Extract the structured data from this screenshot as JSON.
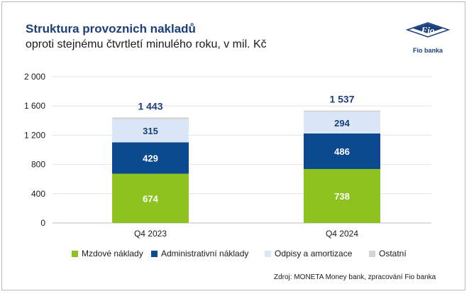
{
  "header": {
    "title": "Struktura provoznich nakladů",
    "subtitle": "oproti stejnému čtvrtletí minulého roku, v mil. Kč"
  },
  "logo": {
    "mark_text": "Fio",
    "label": "Fio banka"
  },
  "chart_data": {
    "type": "bar",
    "stacked": true,
    "title": "Struktura provoznich nakladů",
    "subtitle": "oproti stejnému čtvrtletí minulého roku, v mil. Kč",
    "categories": [
      "Q4 2023",
      "Q4 2024"
    ],
    "series": [
      {
        "name": "Mzdové náklady",
        "values": [
          674,
          738
        ],
        "color": "#8dc21f",
        "label_color": "#ffffff",
        "show_labels": true
      },
      {
        "name": "Administrativní náklady",
        "values": [
          429,
          486
        ],
        "color": "#0c4a8f",
        "label_color": "#ffffff",
        "show_labels": true
      },
      {
        "name": "Odpisy a amortizace",
        "values": [
          315,
          294
        ],
        "color": "#dbe7f6",
        "label_color": "#1a3f7a",
        "show_labels": true
      },
      {
        "name": "Ostatní",
        "values": [
          25,
          19
        ],
        "color": "#d4d4d4",
        "label_color": "#1a3f7a",
        "show_labels": false
      }
    ],
    "totals": [
      1443,
      1537
    ],
    "total_labels": [
      "1 443",
      "1 537"
    ],
    "ylim": [
      0,
      2000
    ],
    "yticks": [
      0,
      400,
      800,
      1200,
      1600,
      2000
    ],
    "ytick_labels": [
      "0",
      "400",
      "800",
      "1 200",
      "1 600",
      "2 000"
    ],
    "grid": true,
    "xlabel": "",
    "ylabel": "",
    "legend_position": "bottom"
  },
  "source": "Zdroj: MONETA Money bank, zpracování Fio banka"
}
